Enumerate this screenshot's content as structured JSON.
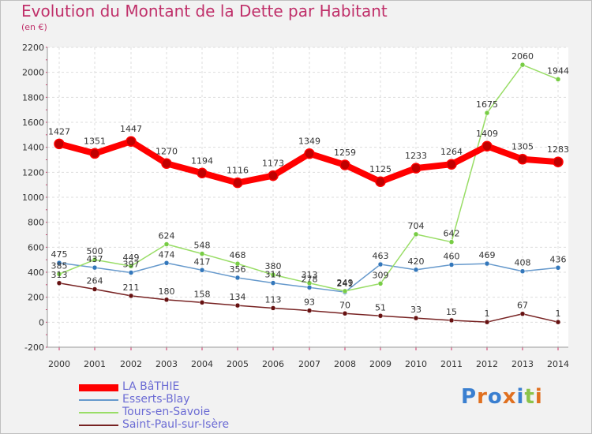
{
  "chart_data": {
    "type": "line",
    "title": "Evolution du Montant de la Dette par Habitant",
    "subtitle": "(en €)",
    "x": [
      "2000",
      "2001",
      "2002",
      "2003",
      "2004",
      "2005",
      "2006",
      "2007",
      "2008",
      "2009",
      "2010",
      "2011",
      "2012",
      "2013",
      "2014"
    ],
    "yticks": [
      "-200",
      "0",
      "200",
      "400",
      "600",
      "800",
      "1000",
      "1200",
      "1400",
      "1600",
      "1800",
      "2000",
      "2200"
    ],
    "ylim": [
      -200,
      2200
    ],
    "grid": true,
    "legend_position": "bottom-left",
    "series": [
      {
        "name": "LA BâTHIE",
        "color": "#ff0000",
        "marker": "#c00000",
        "values": [
          1427,
          1351,
          1447,
          1270,
          1194,
          1116,
          1173,
          1349,
          1259,
          1125,
          1233,
          1264,
          1409,
          1305,
          1283
        ],
        "labels": [
          "1427",
          "1351",
          "1447",
          "1270",
          "1194",
          "1116",
          "1173",
          "1349",
          "1259",
          "1125",
          "1233",
          "1264",
          "1409",
          "1305",
          "1283"
        ]
      },
      {
        "name": "Esserts-Blay",
        "color": "#6699cc",
        "marker": "#3377bb",
        "values": [
          475,
          437,
          397,
          474,
          417,
          356,
          314,
          278,
          241,
          463,
          420,
          460,
          469,
          408,
          436
        ],
        "labels": [
          "475",
          "437",
          "397",
          "474",
          "417",
          "356",
          "314",
          "278",
          "241",
          "463",
          "420",
          "460",
          "469",
          "408",
          "436"
        ]
      },
      {
        "name": "Tours-en-Savoie",
        "color": "#99dd66",
        "marker": "#77cc44",
        "values": [
          385,
          500,
          449,
          624,
          548,
          468,
          380,
          313,
          249,
          309,
          704,
          642,
          1675,
          2060,
          1944
        ],
        "labels": [
          "385",
          "500",
          "449",
          "624",
          "548",
          "468",
          "380",
          "313",
          "249",
          "309",
          "704",
          "642",
          "1675",
          "2060",
          "1944"
        ]
      },
      {
        "name": "Saint-Paul-sur-Isère",
        "color": "#772222",
        "marker": "#661111",
        "values": [
          313,
          264,
          211,
          180,
          158,
          134,
          113,
          93,
          70,
          51,
          33,
          15,
          1,
          67,
          1
        ],
        "labels": [
          "313",
          "264",
          "211",
          "180",
          "158",
          "134",
          "113",
          "93",
          "70",
          "51",
          "33",
          "15",
          "1",
          "67",
          "1"
        ]
      }
    ]
  },
  "logo": {
    "text": "Proxiti"
  }
}
